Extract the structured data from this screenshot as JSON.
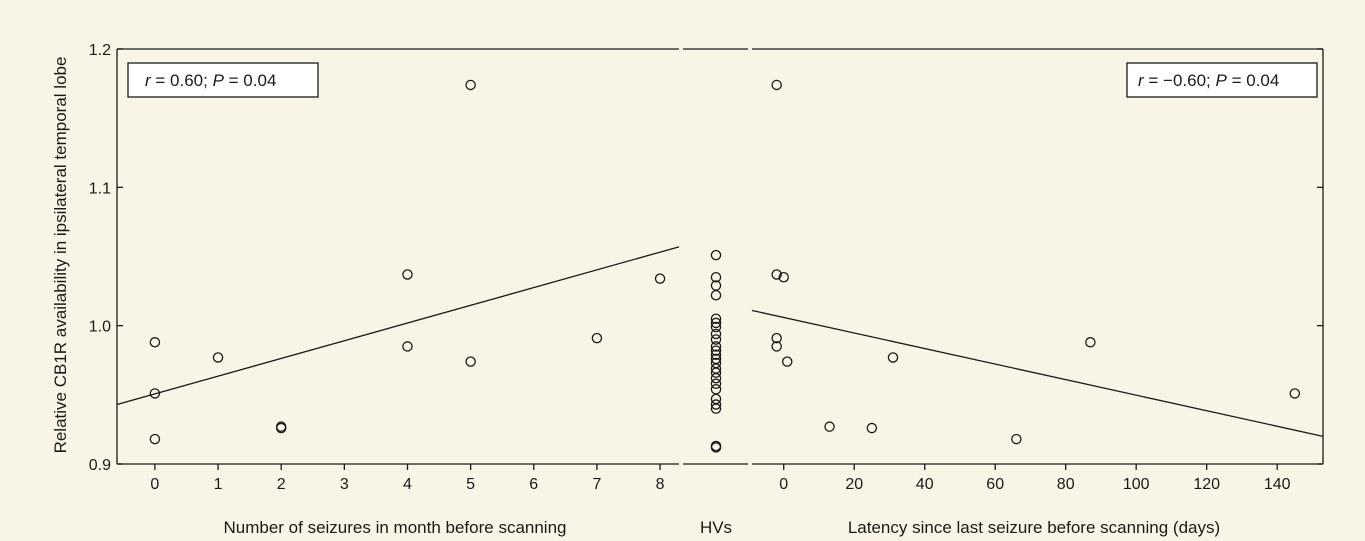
{
  "chart_data": {
    "type": "scatter",
    "ylabel": "Relative CB1R availability in ipsilateral temporal lobe",
    "ylim": [
      0.9,
      1.2
    ],
    "yticks": [
      0.9,
      1.0,
      1.1,
      1.2
    ],
    "ytick_labels": [
      "0.9",
      "1.0",
      "1.1",
      "1.2"
    ],
    "panels": [
      {
        "id": "seizures",
        "xlabel": "Number of seizures in month before scanning",
        "xlim": [
          -0.6,
          8.3
        ],
        "xticks": [
          0,
          1,
          2,
          3,
          4,
          5,
          6,
          7,
          8
        ],
        "annotation": {
          "r_symbol": "r",
          "r_text": " = 0.60; ",
          "p_symbol": "P",
          "p_text": " = 0.04"
        },
        "points": [
          {
            "x": 0,
            "y": 0.988
          },
          {
            "x": 0,
            "y": 0.951
          },
          {
            "x": 0,
            "y": 0.918
          },
          {
            "x": 1,
            "y": 0.977
          },
          {
            "x": 2,
            "y": 0.927
          },
          {
            "x": 2,
            "y": 0.926
          },
          {
            "x": 4,
            "y": 1.037
          },
          {
            "x": 4,
            "y": 0.985
          },
          {
            "x": 5,
            "y": 1.174
          },
          {
            "x": 5,
            "y": 0.974
          },
          {
            "x": 7,
            "y": 0.991
          },
          {
            "x": 8,
            "y": 1.034
          }
        ],
        "fit": {
          "x0": -0.6,
          "y0": 0.943,
          "x1": 8.3,
          "y1": 1.057
        }
      },
      {
        "id": "hvs",
        "xlabel": "HVs",
        "points_y": [
          1.051,
          1.035,
          1.029,
          1.022,
          1.005,
          1.002,
          0.999,
          0.994,
          0.99,
          0.985,
          0.982,
          0.979,
          0.976,
          0.973,
          0.969,
          0.966,
          0.962,
          0.958,
          0.954,
          0.947,
          0.943,
          0.94,
          0.913,
          0.912
        ]
      },
      {
        "id": "latency",
        "xlabel": "Latency since last seizure before scanning (days)",
        "xlim": [
          -9,
          153
        ],
        "xticks": [
          0,
          20,
          40,
          60,
          80,
          100,
          120,
          140
        ],
        "xtick_labels": [
          "0",
          "20",
          "40",
          "60",
          "80",
          "100",
          "120",
          "140"
        ],
        "annotation": {
          "r_symbol": "r",
          "r_text": " = −0.60; ",
          "p_symbol": "P",
          "p_text": " = 0.04"
        },
        "points": [
          {
            "x": -2,
            "y": 1.174
          },
          {
            "x": -2,
            "y": 1.037
          },
          {
            "x": 0,
            "y": 1.035
          },
          {
            "x": -2,
            "y": 0.991
          },
          {
            "x": -2,
            "y": 0.985
          },
          {
            "x": 1,
            "y": 0.974
          },
          {
            "x": 13,
            "y": 0.927
          },
          {
            "x": 25,
            "y": 0.926
          },
          {
            "x": 31,
            "y": 0.977
          },
          {
            "x": 66,
            "y": 0.918
          },
          {
            "x": 87,
            "y": 0.988
          },
          {
            "x": 145,
            "y": 0.951
          }
        ],
        "fit": {
          "x0": -9,
          "y0": 1.011,
          "x1": 153,
          "y1": 0.92
        }
      }
    ]
  }
}
